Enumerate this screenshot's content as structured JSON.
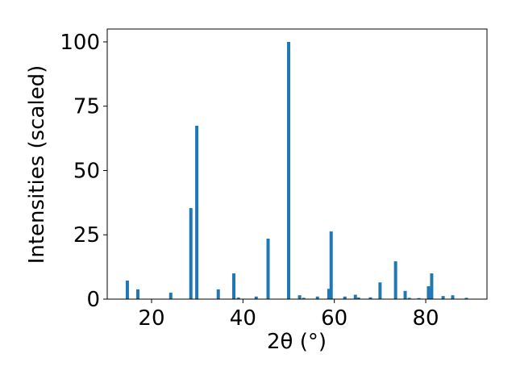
{
  "chart_data": {
    "type": "bar",
    "x_label": "2θ (°)",
    "y_label": "Intensities (scaled)",
    "x": [
      14.7,
      17.0,
      24.2,
      28.6,
      29.9,
      34.6,
      38.0,
      39.0,
      42.9,
      45.5,
      50.0,
      52.4,
      53.3,
      56.3,
      58.8,
      59.3,
      62.3,
      64.6,
      65.3,
      67.9,
      70.0,
      73.4,
      75.5,
      76.4,
      78.5,
      80.6,
      81.3,
      83.8,
      85.9,
      88.9
    ],
    "values": [
      7.2,
      3.8,
      2.5,
      35.4,
      67.4,
      3.8,
      10,
      0.6,
      1.0,
      23.5,
      100,
      1.5,
      0.5,
      1.0,
      4.0,
      26.3,
      1.0,
      1.7,
      0.6,
      0.7,
      6.5,
      14.7,
      3.2,
      0.5,
      0.4,
      5.0,
      10,
      1.2,
      1.5,
      0.5
    ],
    "color": "#1f77b4",
    "xlim": [
      10.3,
      93.4
    ],
    "xticks": [
      20,
      40,
      60,
      80
    ],
    "ylim": [
      0,
      105
    ],
    "yticks": [
      0,
      25,
      50,
      75,
      100
    ]
  }
}
